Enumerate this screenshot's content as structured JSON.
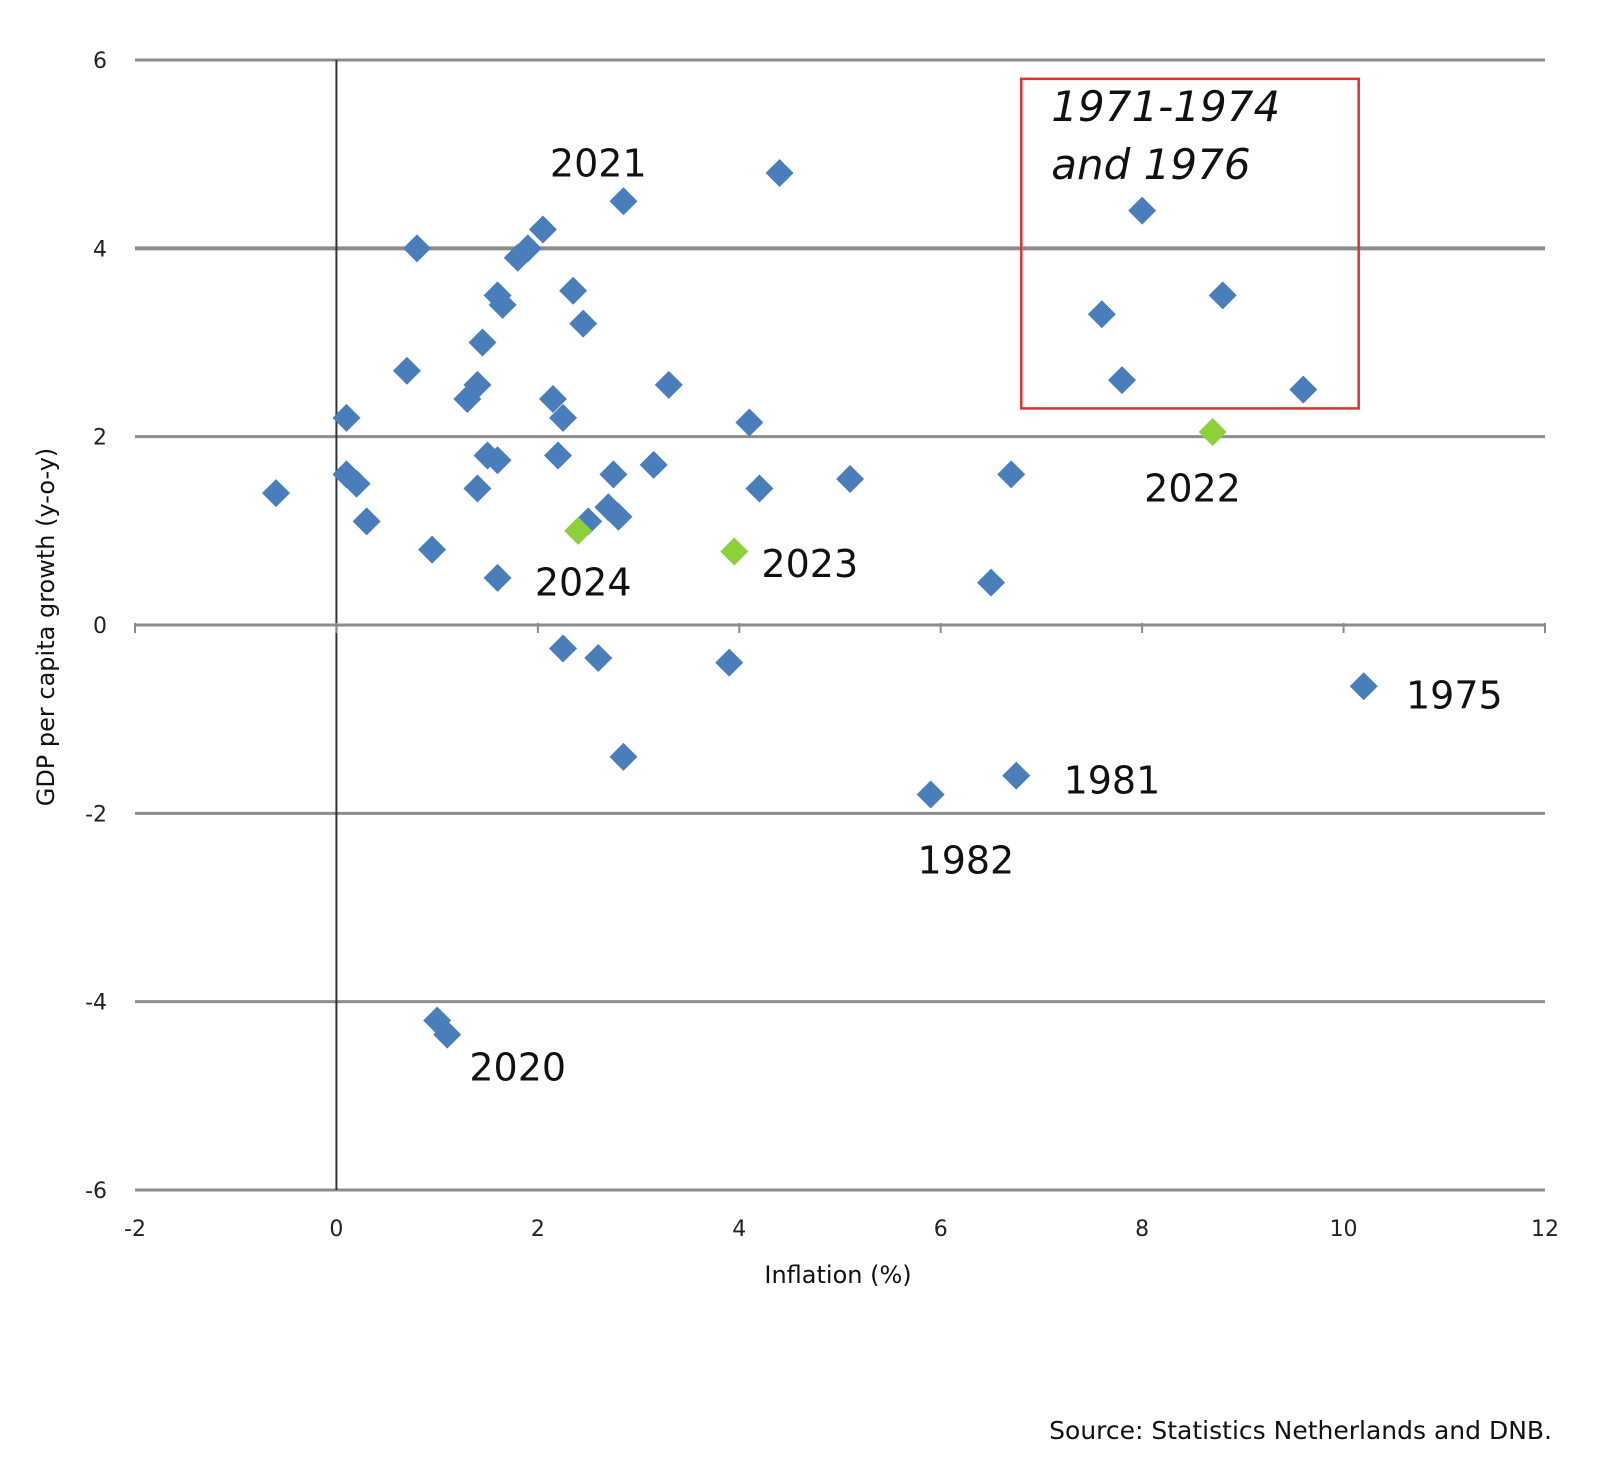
{
  "chart_data": {
    "type": "scatter",
    "xlabel": "Inflation (%)",
    "ylabel": "GDP per capita growth (y-o-y)",
    "xlim": [
      -2,
      12
    ],
    "ylim": [
      -6,
      6
    ],
    "xticks": [
      -2,
      0,
      2,
      4,
      6,
      8,
      10,
      12
    ],
    "yticks": [
      -6,
      -4,
      -2,
      0,
      2,
      4,
      6
    ],
    "grid": "horizontal",
    "colors": {
      "historical": "#4a7ebb",
      "recent": "#8cd03a",
      "box": "#e03030",
      "grid": "#8c8c8c"
    },
    "series": [
      {
        "points": [
          [
            -0.6,
            1.4
          ],
          [
            0.1,
            2.2
          ],
          [
            0.1,
            1.6
          ],
          [
            0.2,
            1.5
          ],
          [
            0.3,
            1.1
          ],
          [
            0.7,
            2.7
          ],
          [
            0.8,
            4.0
          ],
          [
            0.95,
            0.8
          ],
          [
            1.0,
            -4.2
          ],
          [
            1.1,
            -4.35
          ],
          [
            1.3,
            2.4
          ],
          [
            1.4,
            2.55
          ],
          [
            1.4,
            1.45
          ],
          [
            1.45,
            3.0
          ],
          [
            1.5,
            1.8
          ],
          [
            1.6,
            1.75
          ],
          [
            1.6,
            0.5
          ],
          [
            1.6,
            3.5
          ],
          [
            1.65,
            3.4
          ],
          [
            1.8,
            3.9
          ],
          [
            1.9,
            4.0
          ],
          [
            2.05,
            4.2
          ],
          [
            2.15,
            2.4
          ],
          [
            2.2,
            1.8
          ],
          [
            2.25,
            2.2
          ],
          [
            2.25,
            -0.25
          ],
          [
            2.35,
            3.55
          ],
          [
            2.45,
            3.2
          ],
          [
            2.5,
            1.1
          ],
          [
            2.6,
            -0.35
          ],
          [
            2.7,
            1.25
          ],
          [
            2.75,
            1.6
          ],
          [
            2.8,
            1.15
          ],
          [
            2.85,
            4.5
          ],
          [
            2.85,
            -1.4
          ],
          [
            3.15,
            1.7
          ],
          [
            3.3,
            2.55
          ],
          [
            3.9,
            -0.4
          ],
          [
            4.1,
            2.15
          ],
          [
            4.2,
            1.45
          ],
          [
            4.4,
            4.8
          ],
          [
            5.1,
            1.55
          ],
          [
            5.9,
            -1.8
          ],
          [
            6.5,
            0.45
          ],
          [
            6.7,
            1.6
          ],
          [
            6.75,
            -1.6
          ],
          [
            7.6,
            3.3
          ],
          [
            7.8,
            2.6
          ],
          [
            8.0,
            4.4
          ],
          [
            8.8,
            3.5
          ],
          [
            9.6,
            2.5
          ],
          [
            10.2,
            -0.65
          ]
        ]
      },
      {
        "points": [
          [
            8.7,
            2.05
          ],
          [
            3.95,
            0.78
          ],
          [
            2.4,
            1.0
          ]
        ]
      }
    ],
    "annotations": [
      {
        "text": "2021",
        "x": 2.6,
        "y": 4.9
      },
      {
        "text": "2022",
        "x": 8.5,
        "y": 1.45
      },
      {
        "text": "2023",
        "x": 4.7,
        "y": 0.65
      },
      {
        "text": "2024",
        "x": 2.45,
        "y": 0.45
      },
      {
        "text": "2020",
        "x": 1.8,
        "y": -4.7
      },
      {
        "text": "1975",
        "x": 11.1,
        "y": -0.75
      },
      {
        "text": "1981",
        "x": 7.7,
        "y": -1.65
      },
      {
        "text": "1982",
        "x": 6.25,
        "y": -2.5
      }
    ],
    "highlight_box": {
      "x_range": [
        6.8,
        10.15
      ],
      "y_range": [
        2.3,
        5.8
      ],
      "label_lines": [
        "1971-1974",
        "and 1976"
      ]
    }
  },
  "source": "Source: Statistics Netherlands and DNB."
}
